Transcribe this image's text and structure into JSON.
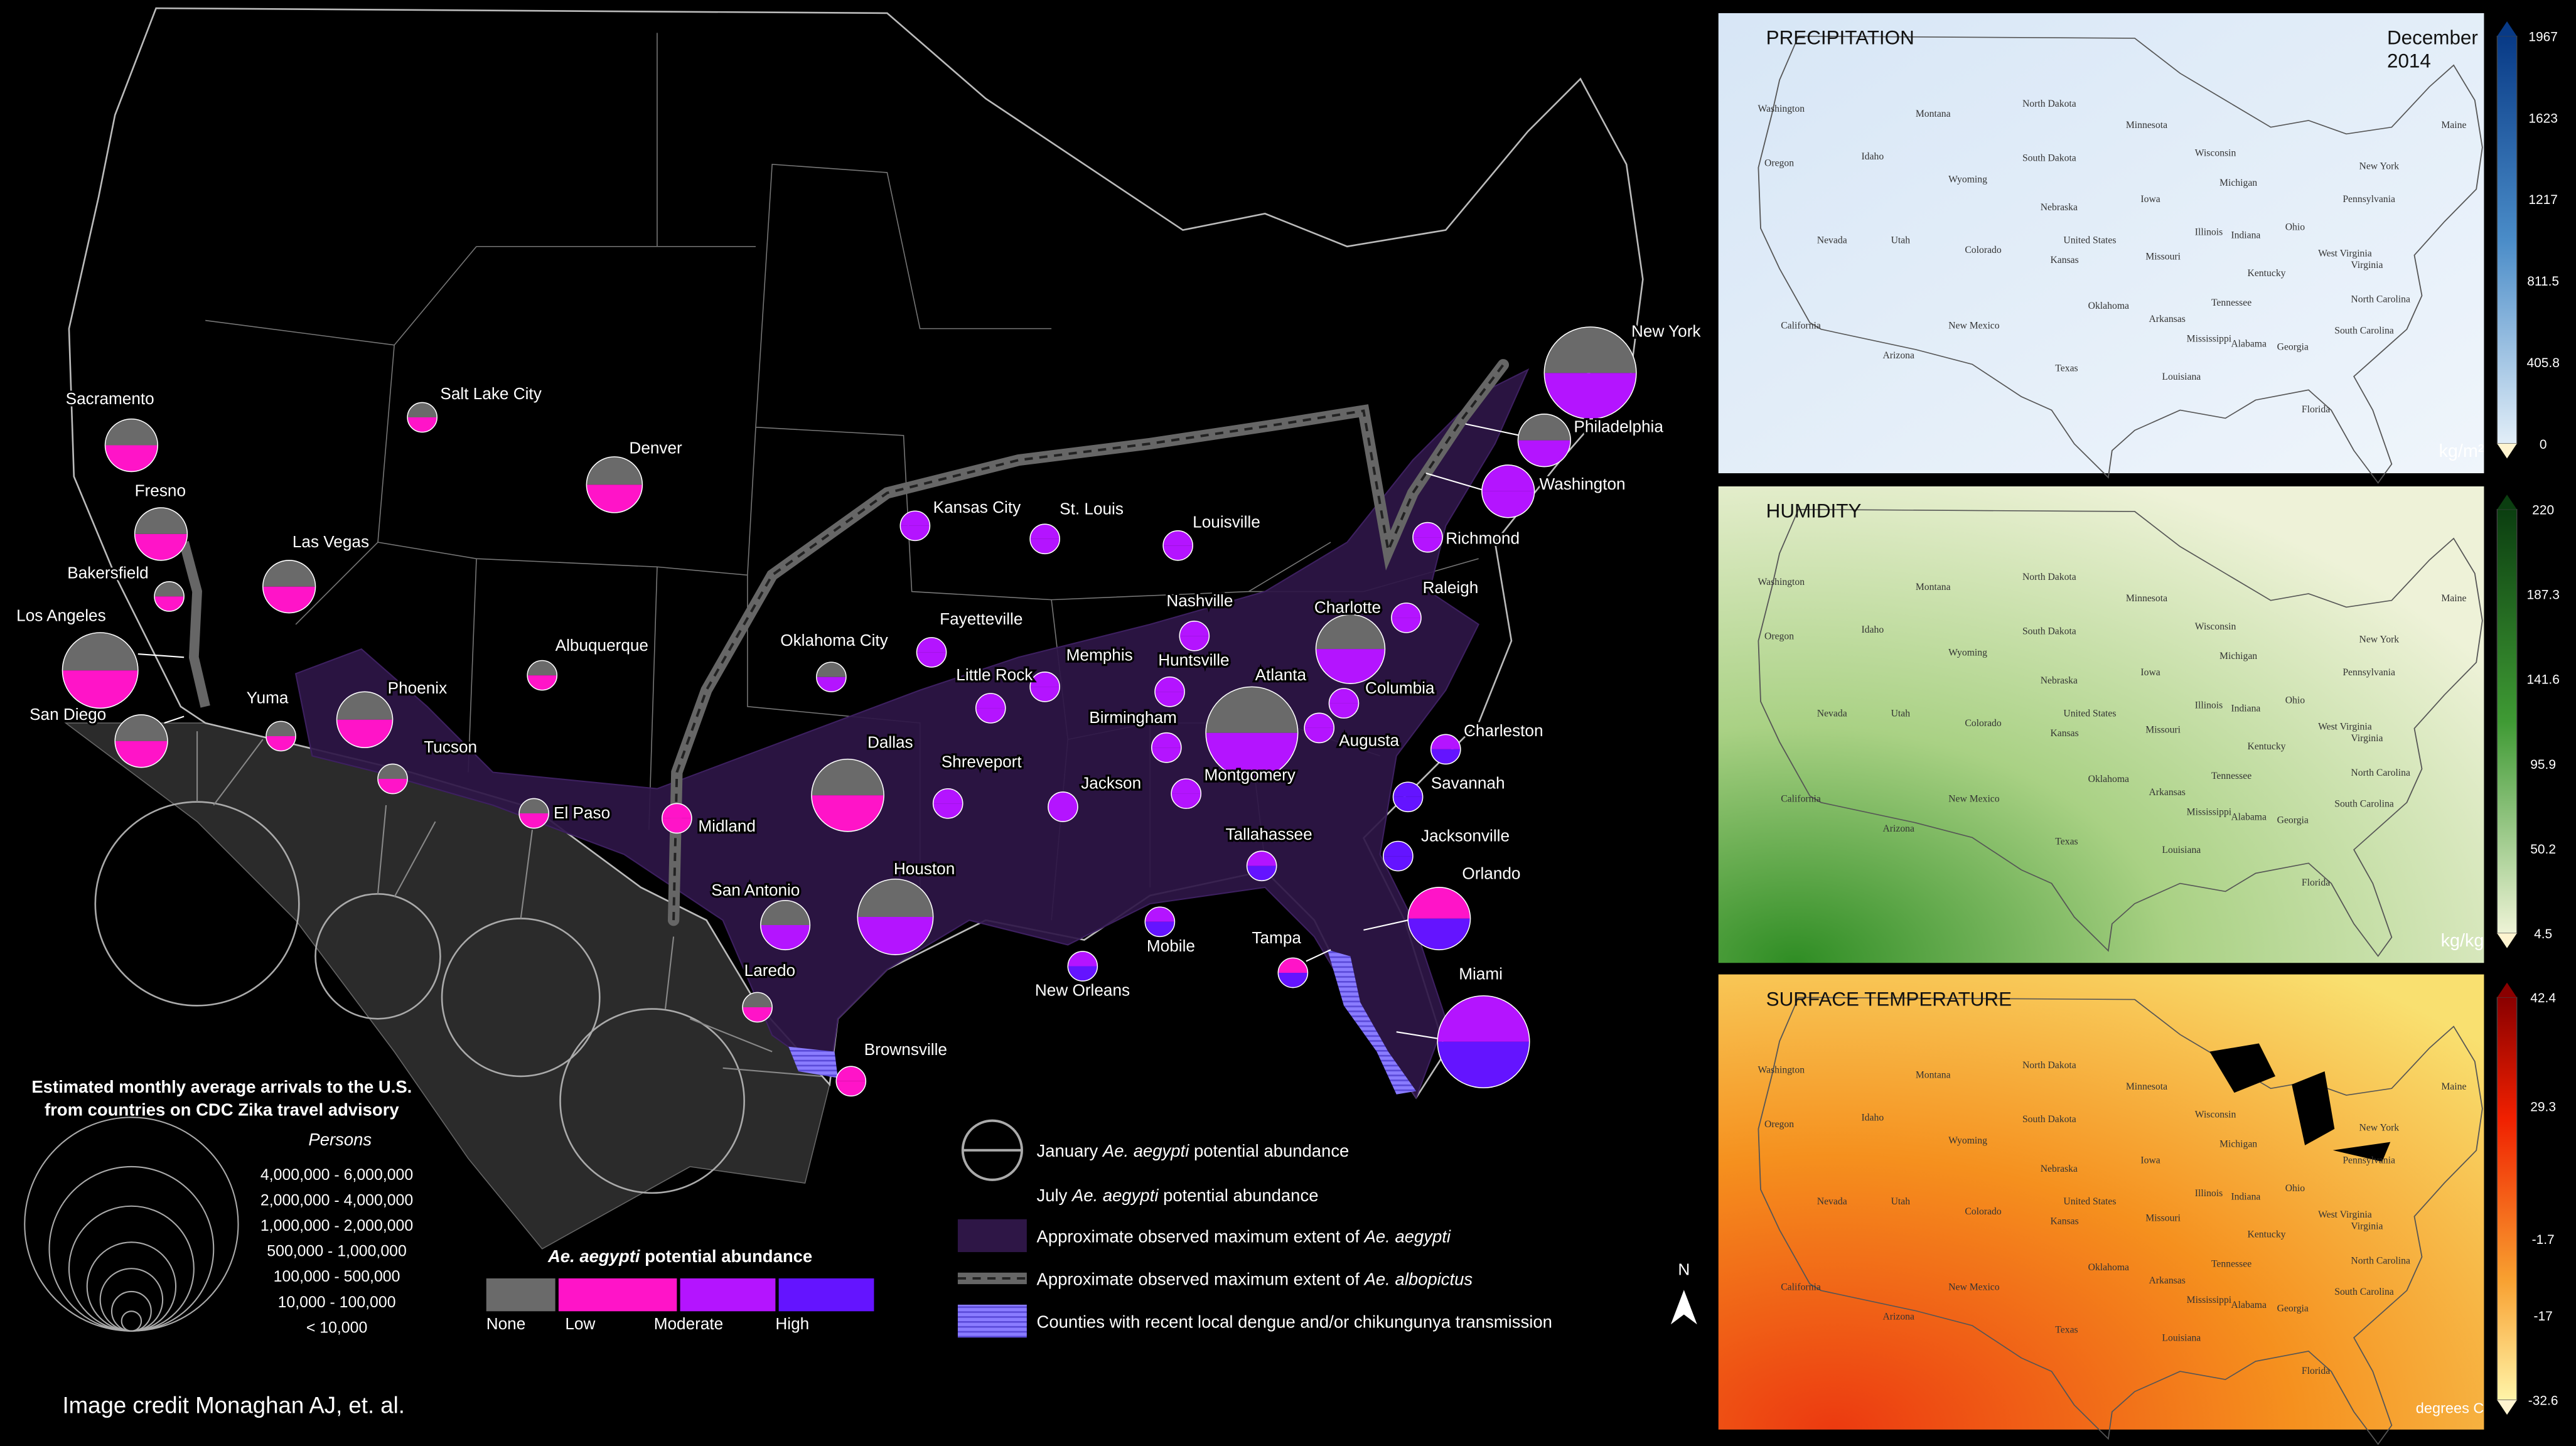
{
  "map": {
    "cities": [
      "New York",
      "Philadelphia",
      "Washington",
      "Richmond",
      "Raleigh",
      "Charlotte",
      "Columbia",
      "Charleston",
      "Augusta",
      "Atlanta",
      "Savannah",
      "Jacksonville",
      "Orlando",
      "Tampa",
      "Miami",
      "Tallahassee",
      "Mobile",
      "New Orleans",
      "Montgomery",
      "Birmingham",
      "Huntsville",
      "Nashville",
      "Louisville",
      "Memphis",
      "Little Rock",
      "Jackson",
      "Shreveport",
      "Houston",
      "Dallas",
      "San Antonio",
      "Laredo",
      "Brownsville",
      "Midland",
      "El Paso",
      "Tucson",
      "Phoenix",
      "Yuma",
      "San Diego",
      "Los Angeles",
      "Bakersfield",
      "Fresno",
      "Sacramento",
      "Las Vegas",
      "Salt Lake City",
      "Denver",
      "Albuquerque",
      "Oklahoma City",
      "Fayetteville",
      "Kansas City",
      "St. Louis"
    ],
    "arrivals_legend": {
      "title": [
        "Estimated monthly average arrivals to the U.S.",
        "from countries on CDC Zika travel advisory"
      ],
      "subtitle": "Persons",
      "bins": [
        "4,000,000  -  6,000,000",
        "2,000,000  -  4,000,000",
        "1,000,000  -  2,000,000",
        "500,000  -  1,000,000",
        "100,000  -  500,000",
        "10,000  -  100,000",
        "< 10,000"
      ]
    },
    "abundance_legend": {
      "title": [
        "Ae. aegypti",
        " potential abundance"
      ],
      "levels": [
        "None",
        "Low",
        "Moderate",
        "High"
      ]
    },
    "key": [
      [
        "January ",
        "Ae. aegypti",
        " potential abundance"
      ],
      [
        "July ",
        "Ae. aegypti",
        " potential abundance"
      ],
      [
        "Approximate observed maximum extent of  ",
        "Ae. aegypti"
      ],
      [
        "Approximate observed maximum extent of  ",
        "Ae. albopictus"
      ],
      [
        "Counties with recent local dengue and/or chikungunya transmission"
      ]
    ],
    "north": "N",
    "credit": "Image credit Monaghan AJ, et. al."
  },
  "panels": [
    {
      "title": "PRECIPITATION",
      "date": [
        "December",
        "2014"
      ],
      "unit": "kg/m²",
      "ticks": [
        "1967",
        "1623",
        "1217",
        "811.5",
        "405.8",
        "0"
      ]
    },
    {
      "title": "HUMIDITY",
      "unit": "kg/kg",
      "ticks": [
        "220",
        "187.3",
        "141.6",
        "95.9",
        "50.2",
        "4.5"
      ]
    },
    {
      "title": "SURFACE TEMPERATURE",
      "unit": "degrees C",
      "ticks": [
        "42.4",
        "29.3",
        "-1.7",
        "-17",
        "-32.6"
      ]
    }
  ],
  "state_labels": [
    "Washington",
    "Oregon",
    "California",
    "Nevada",
    "Idaho",
    "Montana",
    "Wyoming",
    "Utah",
    "Arizona",
    "Colorado",
    "New Mexico",
    "North Dakota",
    "South Dakota",
    "Nebraska",
    "Kansas",
    "Oklahoma",
    "Texas",
    "Minnesota",
    "Iowa",
    "Missouri",
    "Arkansas",
    "Louisiana",
    "Wisconsin",
    "Michigan",
    "Illinois",
    "Indiana",
    "Ohio",
    "Kentucky",
    "Tennessee",
    "Mississippi",
    "Alabama",
    "Georgia",
    "Florida",
    "Pennsylvania",
    "New York",
    "West Virginia",
    "Virginia",
    "North Carolina",
    "South Carolina",
    "Maine",
    "United States"
  ]
}
